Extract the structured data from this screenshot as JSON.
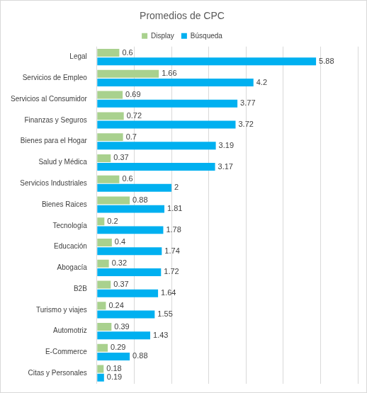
{
  "chart_data": {
    "type": "bar",
    "title": "Promedios de CPC",
    "orientation": "horizontal",
    "categories": [
      "Legal",
      "Servicios de Empleo",
      "Servicios al Consumidor",
      "Finanzas y Seguros",
      "Bienes para el Hogar",
      "Salud y Médica",
      "Servicios Industriales",
      "Bienes Raices",
      "Tecnología",
      "Educación",
      "Abogacía",
      "B2B",
      "Turismo y viajes",
      "Automotriz",
      "E-Commerce",
      "Citas y Personales"
    ],
    "series": [
      {
        "name": "Display",
        "color": "#a9d18e",
        "values": [
          0.6,
          1.66,
          0.69,
          0.72,
          0.7,
          0.37,
          0.6,
          0.88,
          0.2,
          0.4,
          0.32,
          0.37,
          0.24,
          0.39,
          0.29,
          0.18
        ]
      },
      {
        "name": "Búsqueda",
        "color": "#00b0f0",
        "values": [
          5.88,
          4.2,
          3.77,
          3.72,
          3.19,
          3.17,
          2,
          1.81,
          1.78,
          1.74,
          1.72,
          1.64,
          1.55,
          1.43,
          0.88,
          0.19
        ]
      }
    ],
    "xlim": [
      0,
      7
    ],
    "xticks": [
      0,
      1,
      2,
      3,
      4,
      5,
      6,
      7
    ],
    "grid": true,
    "legend": "top",
    "data_labels": true,
    "tick_labels": "y"
  }
}
